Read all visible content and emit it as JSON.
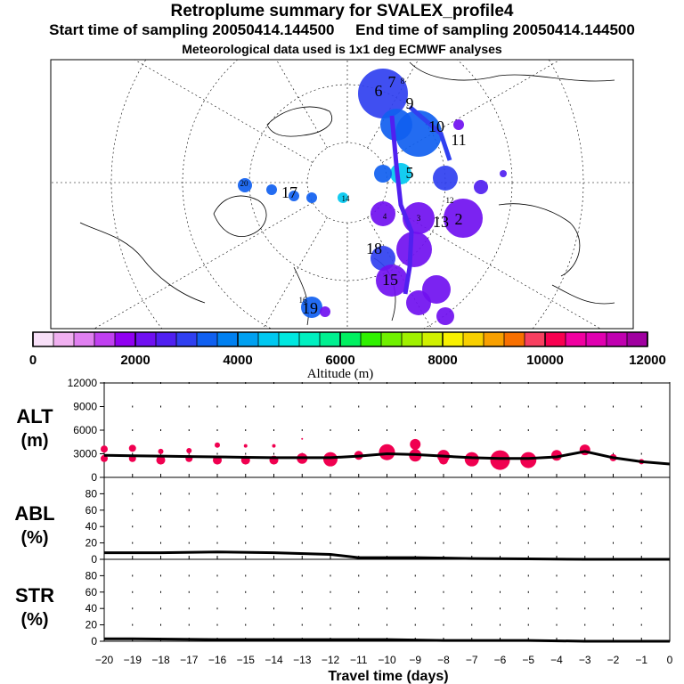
{
  "header": {
    "title": "Retroplume summary for SVALEX_profile4",
    "start": "Start time of sampling 20050414.144500",
    "end": "End time of sampling 20050414.144500",
    "met": "Meteorological data used is 1x1 deg ECMWF analyses"
  },
  "colorbar": {
    "label": "Altitude (m)",
    "ticks": [
      "0",
      "2000",
      "4000",
      "6000",
      "8000",
      "10000",
      "12000"
    ],
    "colors": [
      "#f8e0f8",
      "#f0b0f0",
      "#e080f0",
      "#c040f0",
      "#9000f0",
      "#7010f0",
      "#5020f0",
      "#3040f0",
      "#1060f0",
      "#0080f0",
      "#00a0f0",
      "#00c8f0",
      "#00e8e0",
      "#00f0c0",
      "#00f090",
      "#00f060",
      "#30f000",
      "#70f000",
      "#a0f000",
      "#d0f000",
      "#f8f000",
      "#f8d000",
      "#f8a000",
      "#f87000",
      "#f84060",
      "#f80050",
      "#f000a0",
      "#e000b0",
      "#c000b0",
      "#a000a0"
    ],
    "bar_color": "#f00050"
  },
  "map": {
    "labels": [
      {
        "t": "2",
        "alt": 2000
      },
      {
        "t": "3",
        "alt": 2000
      },
      {
        "t": "4",
        "alt": 3000
      },
      {
        "t": "5",
        "alt": 2000
      },
      {
        "t": "6",
        "alt": 3500
      },
      {
        "t": "7",
        "alt": 2500
      },
      {
        "t": "8",
        "alt": 2500
      },
      {
        "t": "9",
        "alt": 3500
      },
      {
        "t": "10",
        "alt": 3200
      },
      {
        "t": "11",
        "alt": 3000
      },
      {
        "t": "12",
        "alt": 2500
      },
      {
        "t": "13",
        "alt": 2000
      },
      {
        "t": "14",
        "alt": 4500
      },
      {
        "t": "15",
        "alt": 2000
      },
      {
        "t": "16",
        "alt": 4500
      },
      {
        "t": "17",
        "alt": 4000
      },
      {
        "t": "18",
        "alt": 3000
      },
      {
        "t": "19",
        "alt": 3500
      },
      {
        "t": "20",
        "alt": 3500
      }
    ]
  },
  "chart_data": [
    {
      "type": "scatter",
      "panel": "ALT",
      "ylabel": "ALT (m)",
      "yticks": [
        "0",
        "3000",
        "6000",
        "9000",
        "12000"
      ],
      "ylim": [
        0,
        12000
      ],
      "xlim": [
        -20,
        0
      ],
      "mean_line": {
        "x": [
          -20,
          -19,
          -18,
          -17,
          -16,
          -15,
          -14,
          -13,
          -12,
          -11,
          -10,
          -9,
          -8,
          -7,
          -6,
          -5,
          -4,
          -3,
          -2,
          -1,
          0
        ],
        "y": [
          2800,
          2750,
          2700,
          2650,
          2600,
          2550,
          2500,
          2500,
          2500,
          2700,
          3000,
          2900,
          2700,
          2500,
          2400,
          2400,
          2600,
          3300,
          2500,
          2000,
          1700
        ]
      },
      "bubbles": [
        {
          "x": -20,
          "y": 3600,
          "r": 4
        },
        {
          "x": -20,
          "y": 2400,
          "r": 4
        },
        {
          "x": -19,
          "y": 3700,
          "r": 4
        },
        {
          "x": -19,
          "y": 2400,
          "r": 4
        },
        {
          "x": -18,
          "y": 3300,
          "r": 3
        },
        {
          "x": -18,
          "y": 2200,
          "r": 5
        },
        {
          "x": -17,
          "y": 3400,
          "r": 3
        },
        {
          "x": -17,
          "y": 2400,
          "r": 4
        },
        {
          "x": -16,
          "y": 4100,
          "r": 3
        },
        {
          "x": -16,
          "y": 2200,
          "r": 5
        },
        {
          "x": -15,
          "y": 4000,
          "r": 2
        },
        {
          "x": -15,
          "y": 2200,
          "r": 5
        },
        {
          "x": -14,
          "y": 4000,
          "r": 2
        },
        {
          "x": -14,
          "y": 2200,
          "r": 5
        },
        {
          "x": -13,
          "y": 4900,
          "r": 1
        },
        {
          "x": -13,
          "y": 2400,
          "r": 6
        },
        {
          "x": -12,
          "y": 2300,
          "r": 8
        },
        {
          "x": -11,
          "y": 2800,
          "r": 5
        },
        {
          "x": -10,
          "y": 3200,
          "r": 9
        },
        {
          "x": -9,
          "y": 4200,
          "r": 6
        },
        {
          "x": -9,
          "y": 2800,
          "r": 7
        },
        {
          "x": -8,
          "y": 2700,
          "r": 7
        },
        {
          "x": -8,
          "y": 2200,
          "r": 5
        },
        {
          "x": -7,
          "y": 2300,
          "r": 8
        },
        {
          "x": -6,
          "y": 2200,
          "r": 11
        },
        {
          "x": -5,
          "y": 2200,
          "r": 9
        },
        {
          "x": -4,
          "y": 2800,
          "r": 6
        },
        {
          "x": -3,
          "y": 3500,
          "r": 6
        },
        {
          "x": -2,
          "y": 2500,
          "r": 4
        },
        {
          "x": -1,
          "y": 2000,
          "r": 3
        }
      ]
    },
    {
      "type": "line",
      "panel": "ABL",
      "ylabel": "ABL (%)",
      "yticks": [
        "0",
        "20",
        "40",
        "60",
        "80"
      ],
      "ylim": [
        0,
        100
      ],
      "xlim": [
        -20,
        0
      ],
      "x": [
        -20,
        -18,
        -16,
        -14,
        -12,
        -11,
        -9,
        -7,
        -5,
        -3,
        -1,
        0
      ],
      "y": [
        8,
        8,
        9,
        8,
        6,
        2,
        2,
        1,
        0.5,
        0,
        0,
        0
      ]
    },
    {
      "type": "line",
      "panel": "STR",
      "ylabel": "STR (%)",
      "yticks": [
        "0",
        "20",
        "40",
        "60",
        "80"
      ],
      "ylim": [
        0,
        100
      ],
      "xlim": [
        -20,
        0
      ],
      "x": [
        -20,
        -19,
        -16,
        -13,
        -10,
        -8,
        -5,
        -3,
        0
      ],
      "y": [
        3,
        3,
        2,
        2,
        2,
        1,
        1,
        0,
        0
      ]
    }
  ],
  "xaxis": {
    "label": "Travel time (days)",
    "ticks": [
      "−20",
      "−19",
      "−18",
      "−17",
      "−16",
      "−15",
      "−14",
      "−13",
      "−12",
      "−11",
      "−10",
      "−9",
      "−8",
      "−7",
      "−6",
      "−5",
      "−4",
      "−3",
      "−2",
      "−1",
      "0"
    ]
  }
}
